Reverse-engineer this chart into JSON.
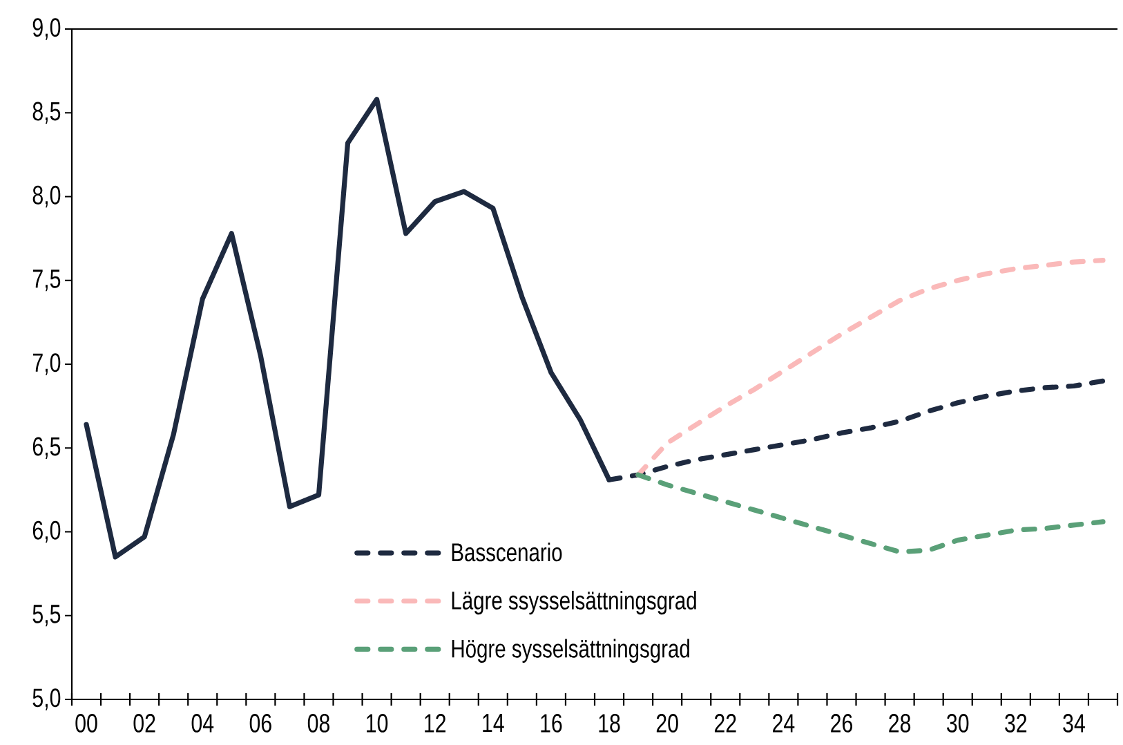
{
  "chart_data": {
    "type": "line",
    "categories": [
      "00",
      null,
      "02",
      null,
      "04",
      null,
      "06",
      null,
      "08",
      null,
      "10",
      null,
      "12",
      null,
      "14",
      null,
      "16",
      null,
      "18",
      null,
      "20",
      null,
      "22",
      null,
      "24",
      null,
      "26",
      null,
      "28",
      null,
      "30",
      null,
      "32",
      null,
      "34",
      null
    ],
    "ylim": [
      5,
      9
    ],
    "yticks": [
      {
        "value": 5,
        "label": "5,0"
      },
      {
        "value": 5.5,
        "label": "5,5"
      },
      {
        "value": 6,
        "label": "6,0"
      },
      {
        "value": 6.5,
        "label": "6,5"
      },
      {
        "value": 7,
        "label": "7,0"
      },
      {
        "value": 7.5,
        "label": "7,5"
      },
      {
        "value": 8,
        "label": "8,0"
      },
      {
        "value": 8.5,
        "label": "8,5"
      },
      {
        "value": 9,
        "label": "9,0"
      }
    ],
    "legend": "bottom",
    "series": [
      {
        "color": "#1e2a40",
        "line_style": "solid",
        "values": [
          6.64,
          5.85,
          5.97,
          6.58,
          7.39,
          7.78,
          7.05,
          6.15,
          6.22,
          8.32,
          8.58,
          7.78,
          7.97,
          8.03,
          7.93,
          7.4,
          6.95,
          6.67,
          6.31,
          null,
          null,
          null,
          null,
          null,
          null,
          null,
          null,
          null,
          null,
          null,
          null,
          null,
          null,
          null,
          null,
          null
        ]
      },
      {
        "name": "Basscenario",
        "color": "#1e2a40",
        "line_style": "dashed",
        "values": [
          null,
          null,
          null,
          null,
          null,
          null,
          null,
          null,
          null,
          null,
          null,
          null,
          null,
          null,
          null,
          null,
          null,
          null,
          6.31,
          6.34,
          6.39,
          6.43,
          6.46,
          6.49,
          6.52,
          6.55,
          6.59,
          6.62,
          6.66,
          6.72,
          6.77,
          6.81,
          6.84,
          6.86,
          6.87,
          6.9
        ]
      },
      {
        "name": "Lägre ssysselsättningsgrad",
        "color": "#fab9b9",
        "line_style": "dashed",
        "values": [
          null,
          null,
          null,
          null,
          null,
          null,
          null,
          null,
          null,
          null,
          null,
          null,
          null,
          null,
          null,
          null,
          null,
          null,
          null,
          6.34,
          6.53,
          6.64,
          6.75,
          6.85,
          6.96,
          7.07,
          7.18,
          7.28,
          7.38,
          7.45,
          7.5,
          7.54,
          7.57,
          7.59,
          7.61,
          7.62
        ]
      },
      {
        "name": "Högre sysselsättningsgrad",
        "color": "#5aa078",
        "line_style": "dashed",
        "values": [
          null,
          null,
          null,
          null,
          null,
          null,
          null,
          null,
          null,
          null,
          null,
          null,
          null,
          null,
          null,
          null,
          null,
          null,
          null,
          6.34,
          6.28,
          6.23,
          6.18,
          6.13,
          6.08,
          6.03,
          5.98,
          5.93,
          5.88,
          5.89,
          5.95,
          5.98,
          6.01,
          6.02,
          6.04,
          6.06
        ]
      }
    ]
  }
}
